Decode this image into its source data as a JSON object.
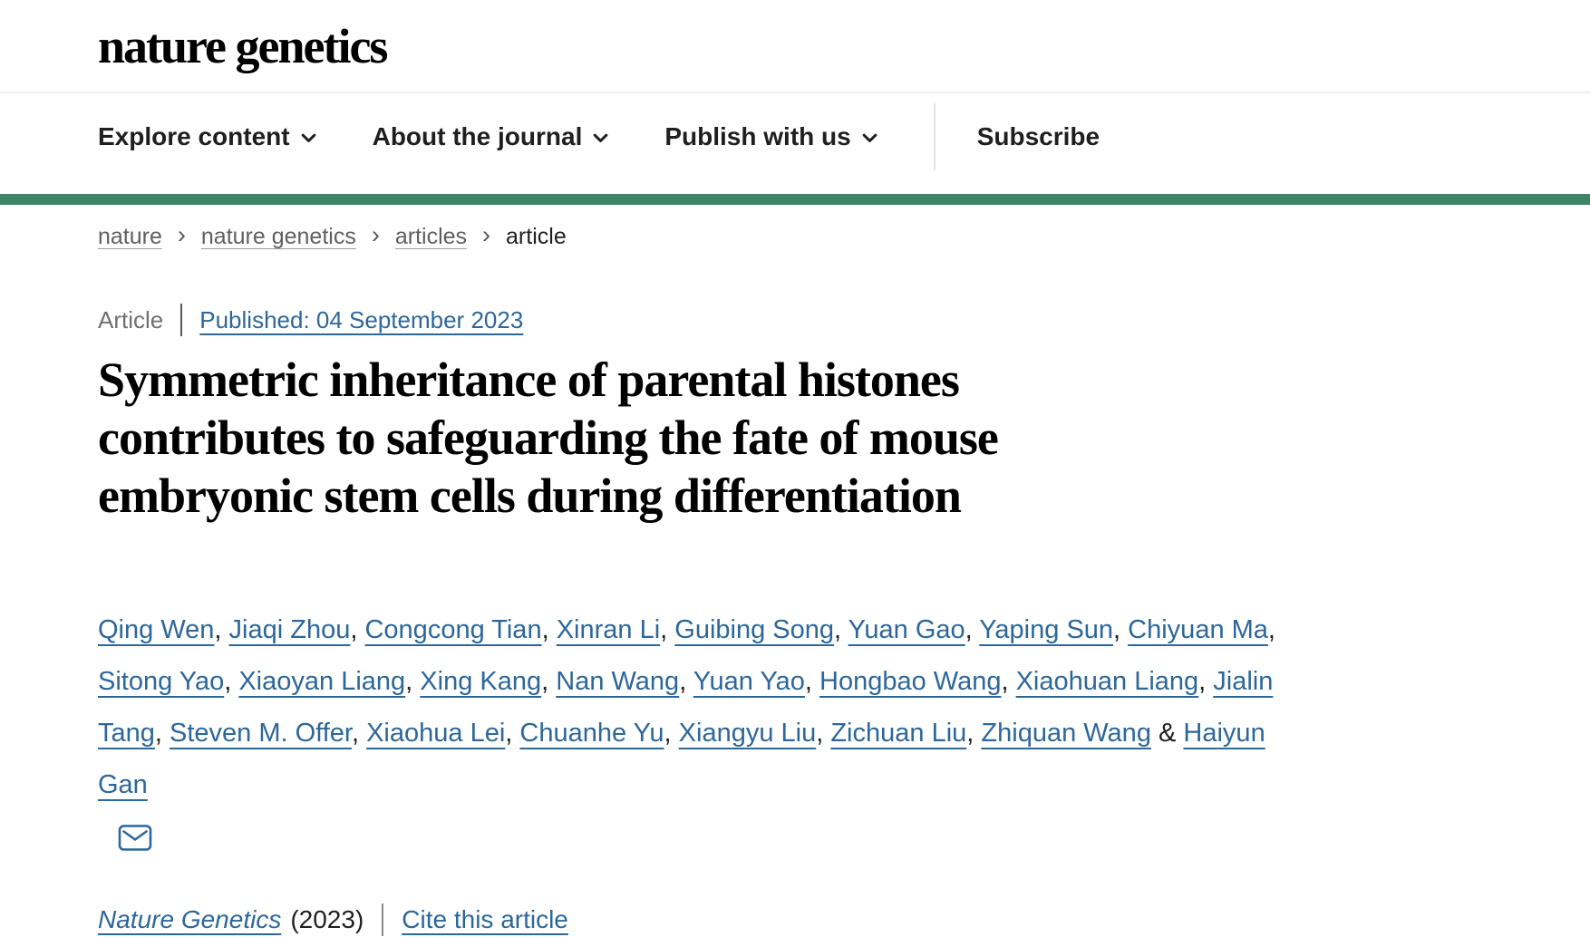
{
  "header": {
    "logo": "nature genetics",
    "nav_items": [
      {
        "label": "Explore content"
      },
      {
        "label": "About the journal"
      },
      {
        "label": "Publish with us"
      }
    ],
    "subscribe": "Subscribe"
  },
  "breadcrumb": {
    "separator": "›",
    "items": [
      {
        "label": "nature",
        "is_link": true
      },
      {
        "label": "nature genetics",
        "is_link": true
      },
      {
        "label": "articles",
        "is_link": true
      },
      {
        "label": "article",
        "is_link": false
      }
    ]
  },
  "meta": {
    "type_label": "Article",
    "published_link": "Published: 04 September 2023"
  },
  "article": {
    "title": "Symmetric inheritance of parental histones contributes to safeguarding the fate of mouse embryonic stem cells during differentiation"
  },
  "authors": {
    "separator": ", ",
    "ampersand": " & ",
    "names": [
      "Qing Wen",
      "Jiaqi Zhou",
      "Congcong Tian",
      "Xinran Li",
      "Guibing Song",
      "Yuan Gao",
      "Yaping Sun",
      "Chiyuan Ma",
      "Sitong Yao",
      "Xiaoyan Liang",
      "Xing Kang",
      "Nan Wang",
      "Yuan Yao",
      "Hongbao Wang",
      "Xiaohuan Liang",
      "Jialin Tang",
      "Steven M. Offer",
      "Xiaohua Lei",
      "Chuanhe Yu",
      "Xiangyu Liu",
      "Zichuan Liu",
      "Zhiquan Wang",
      "Haiyun Gan"
    ]
  },
  "citation": {
    "journal": "Nature Genetics",
    "year": "(2023)",
    "cite_link": "Cite this article"
  },
  "colors": {
    "link_blue": "#2d6799",
    "brand_green": "#3d8566",
    "text_dark": "#1f1f1f",
    "breadcrumb_gray": "#5f5f5f"
  }
}
